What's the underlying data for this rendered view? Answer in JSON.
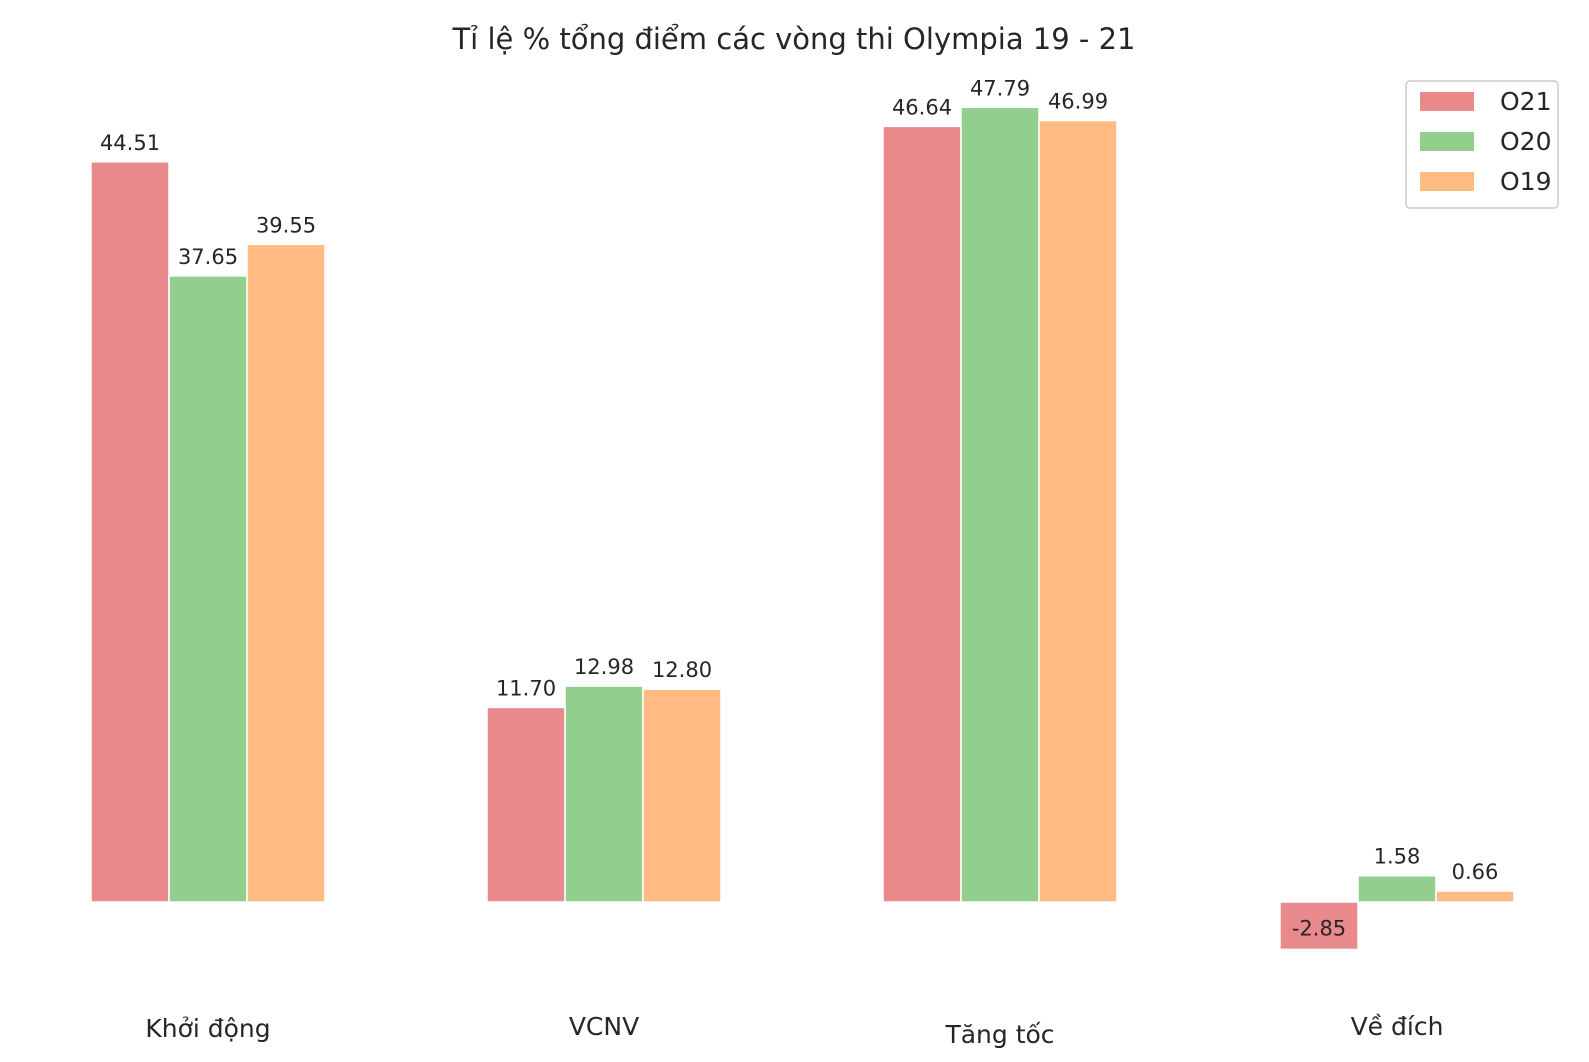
{
  "chart_data": {
    "type": "bar",
    "title": "Tỉ lệ % tổng điểm các vòng thi Olympia 19 - 21",
    "xlabel": "",
    "ylabel": "",
    "categories": [
      "Khởi động",
      "VCNV",
      "Tăng tốc",
      "Về đích"
    ],
    "series": [
      {
        "name": "O21",
        "color": "#e8898b",
        "values": [
          44.51,
          11.7,
          46.64,
          -2.85
        ],
        "labels": [
          "44.51",
          "11.70",
          "46.64",
          "-2.85"
        ]
      },
      {
        "name": "O20",
        "color": "#92cf8f",
        "values": [
          37.65,
          12.98,
          47.79,
          1.58
        ],
        "labels": [
          "37.65",
          "12.98",
          "47.79",
          "1.58"
        ]
      },
      {
        "name": "O19",
        "color": "#ffbb82",
        "values": [
          39.55,
          12.8,
          46.99,
          0.66
        ],
        "labels": [
          "39.55",
          "12.80",
          "46.99",
          "0.66"
        ]
      }
    ],
    "grid": false,
    "legend_position": "top-right",
    "ylim": [
      -3,
      48
    ]
  }
}
